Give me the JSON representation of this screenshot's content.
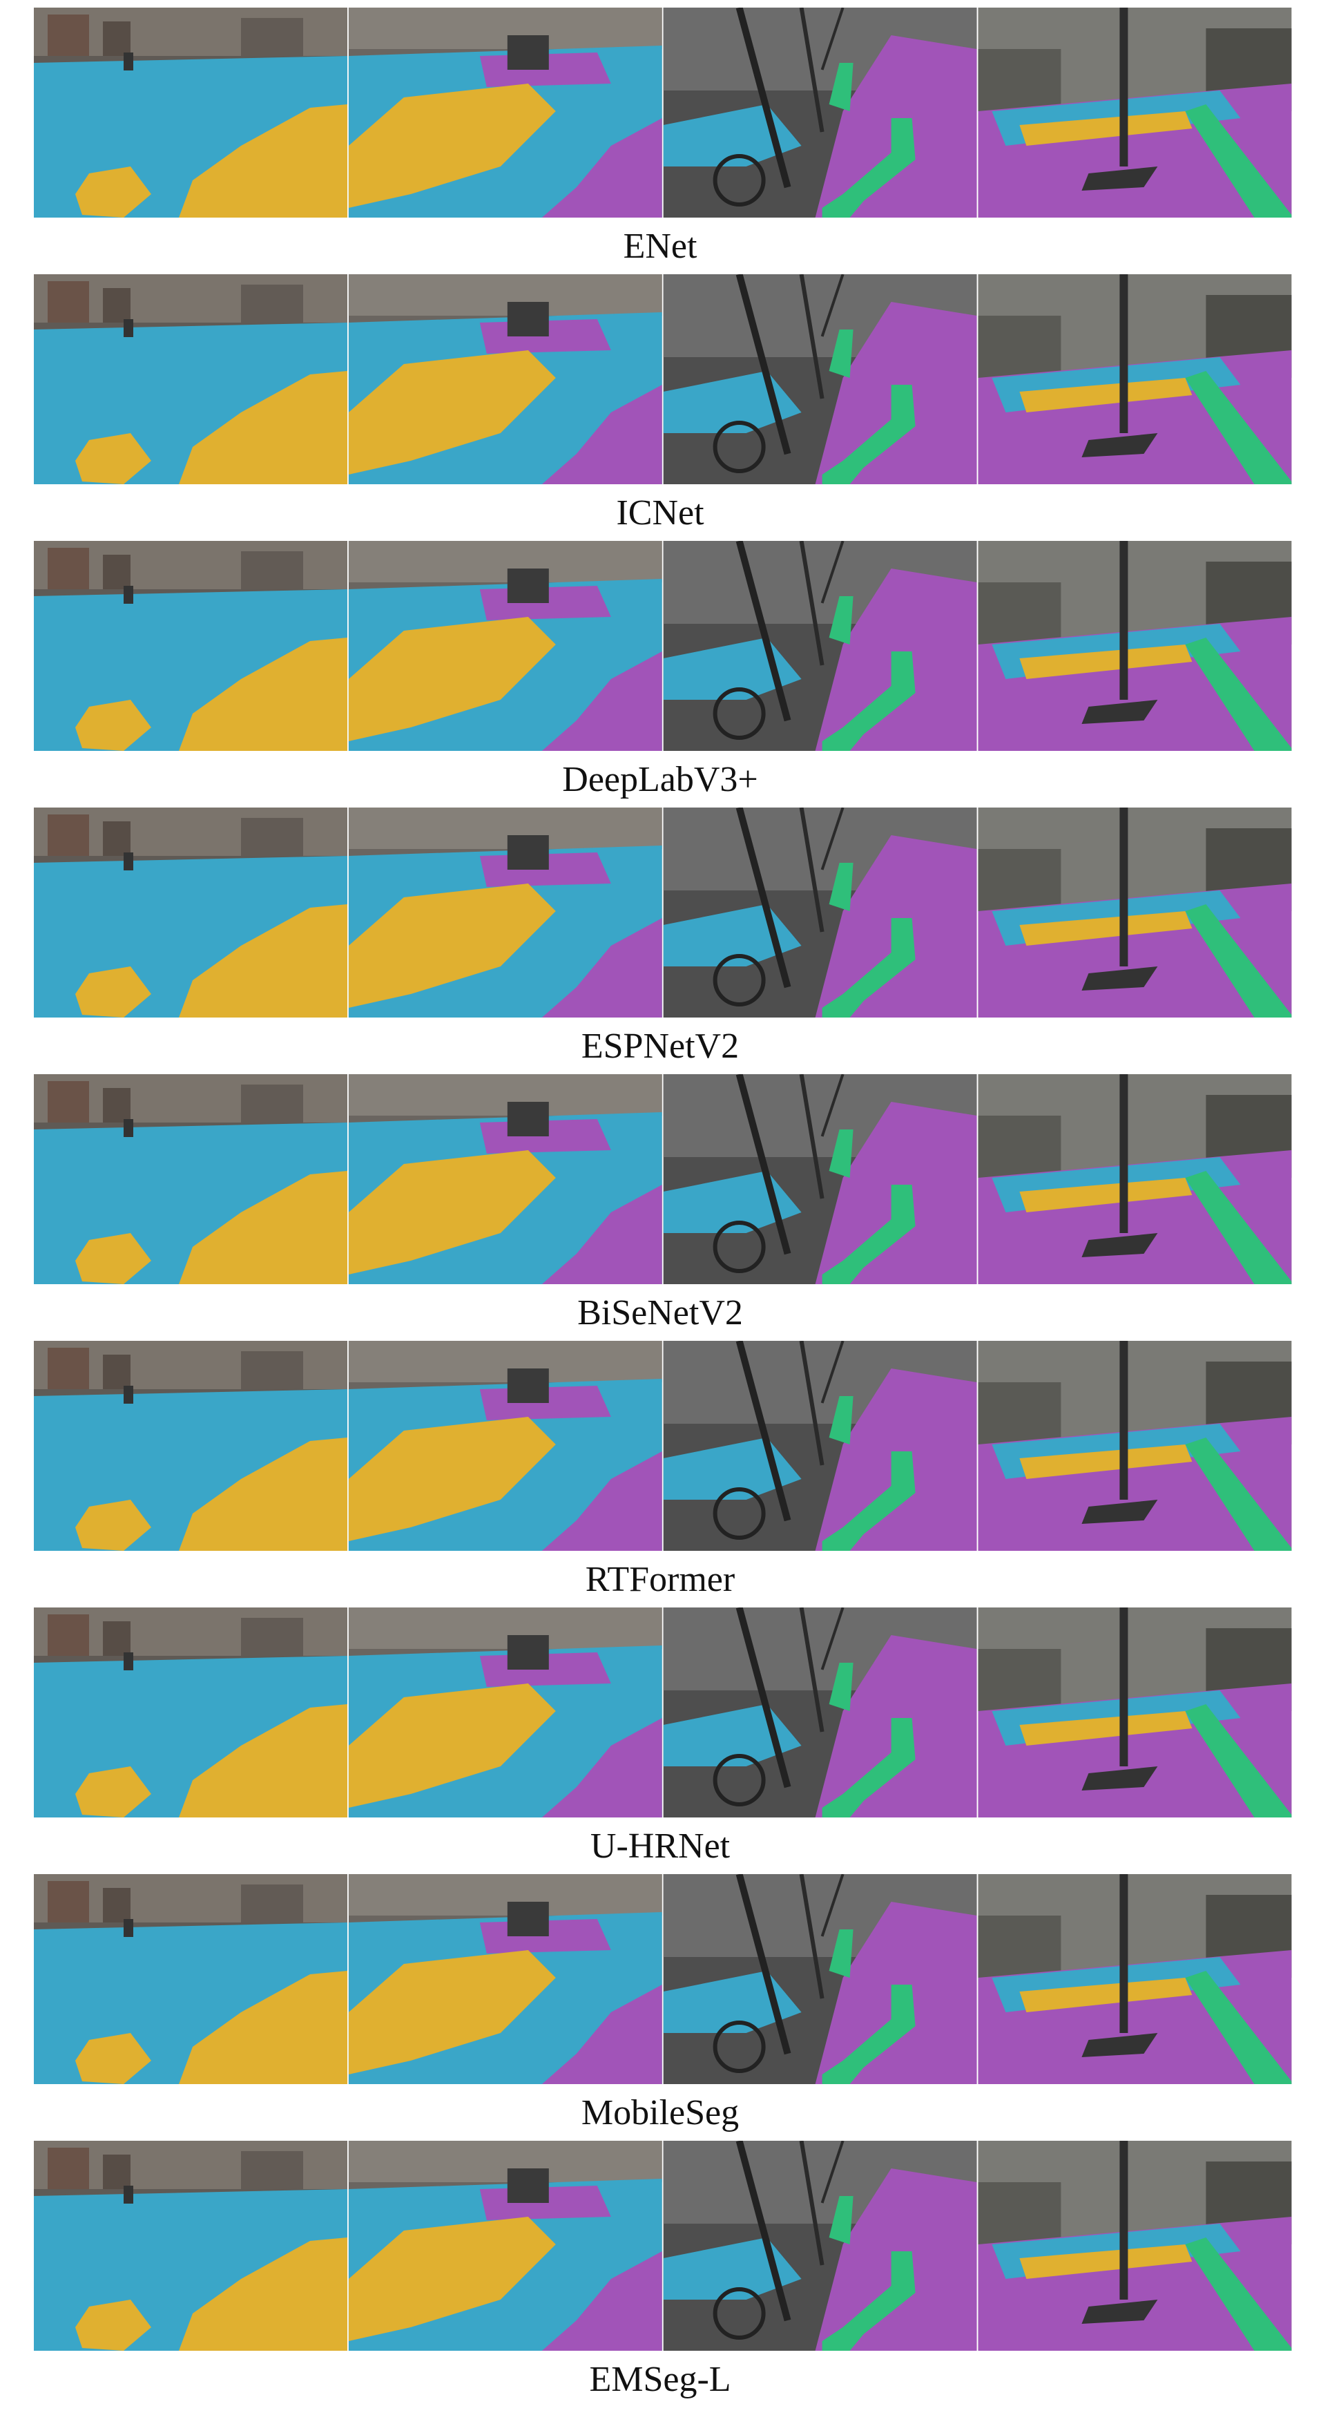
{
  "figure": {
    "rows": [
      {
        "caption": "ENet"
      },
      {
        "caption": "ICNet"
      },
      {
        "caption": "DeepLabV3+"
      },
      {
        "caption": "ESPNetV2"
      },
      {
        "caption": "BiSeNetV2"
      },
      {
        "caption": "RTFormer"
      },
      {
        "caption": "U-HRNet"
      },
      {
        "caption": "MobileSeg"
      },
      {
        "caption": "EMSeg-L"
      }
    ]
  }
}
